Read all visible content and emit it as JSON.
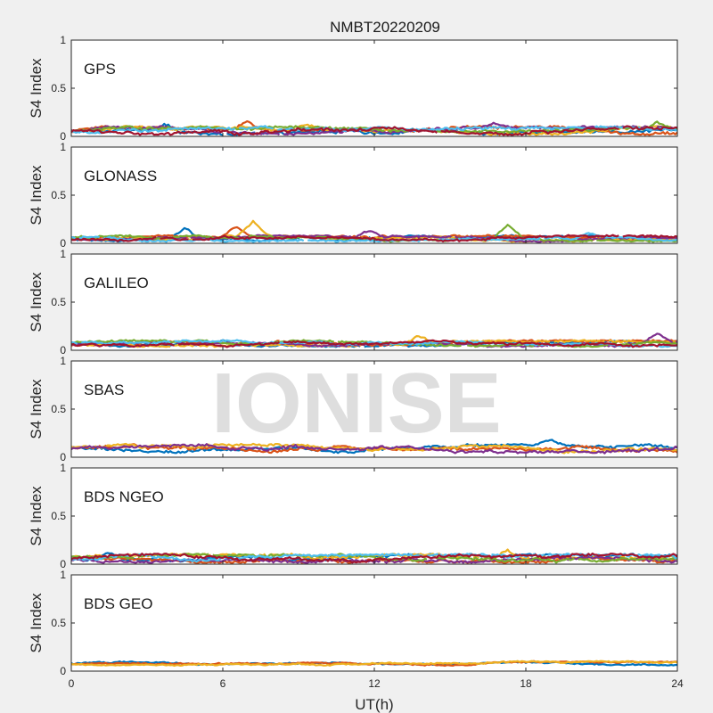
{
  "chart_data": {
    "type": "line",
    "title": "NMBT20220209",
    "xlabel": "UT(h)",
    "ylabel": "S4 Index",
    "xlim": [
      0,
      24
    ],
    "ylim": [
      0,
      1
    ],
    "x_ticks": [
      0,
      6,
      12,
      18,
      24
    ],
    "x_tick_labels": [
      "0",
      "6",
      "12",
      "18",
      "24"
    ],
    "y_ticks": [
      0,
      0.5,
      1
    ],
    "y_tick_labels": [
      "0",
      "0.5",
      "1"
    ],
    "watermark": "IONISE",
    "series_colors": [
      "#0072bd",
      "#d95319",
      "#edb120",
      "#7e2f8e",
      "#77ac30",
      "#4dbeee",
      "#a2142f"
    ],
    "panels": [
      {
        "label": "GPS",
        "baseline": 0.06,
        "spread": 0.04,
        "n_series": 7,
        "bumps": [
          [
            3.7,
            0.12
          ],
          [
            7.0,
            0.13
          ],
          [
            9.3,
            0.11
          ],
          [
            16.7,
            0.12
          ],
          [
            23.2,
            0.12
          ]
        ]
      },
      {
        "label": "GLONASS",
        "baseline": 0.05,
        "spread": 0.03,
        "n_series": 7,
        "bumps": [
          [
            4.5,
            0.17
          ],
          [
            6.5,
            0.14
          ],
          [
            7.2,
            0.2
          ],
          [
            11.8,
            0.12
          ],
          [
            17.3,
            0.21
          ],
          [
            20.5,
            0.11
          ]
        ]
      },
      {
        "label": "GALILEO",
        "baseline": 0.07,
        "spread": 0.03,
        "n_series": 7,
        "bumps": [
          [
            6.0,
            0.12
          ],
          [
            8.3,
            0.13
          ],
          [
            13.7,
            0.15
          ],
          [
            23.2,
            0.17
          ]
        ]
      },
      {
        "label": "SBAS",
        "baseline": 0.09,
        "spread": 0.04,
        "n_series": 4,
        "bumps": [
          [
            19.0,
            0.14
          ],
          [
            2.5,
            0.13
          ]
        ]
      },
      {
        "label": "BDS NGEO",
        "baseline": 0.06,
        "spread": 0.04,
        "n_series": 7,
        "bumps": [
          [
            1.5,
            0.12
          ],
          [
            10.0,
            0.13
          ],
          [
            17.3,
            0.16
          ],
          [
            13.5,
            0.1
          ]
        ]
      },
      {
        "label": "BDS GEO",
        "baseline": 0.08,
        "spread": 0.02,
        "n_series": 3,
        "bumps": []
      }
    ]
  }
}
